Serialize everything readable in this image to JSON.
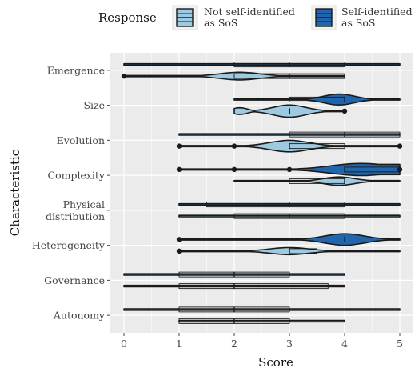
{
  "colors": {
    "panel_bg": "#ebebeb",
    "grid": "#ffffff",
    "not_sos_fill": "#9ecae1",
    "sos_fill": "#2166ac",
    "outline": "#1a1a1a"
  },
  "chart_data": {
    "type": "violin",
    "xlabel": "Score",
    "ylabel": "Characteristic",
    "xlim": [
      0,
      5
    ],
    "x_ticks": [
      "0",
      "1",
      "2",
      "3",
      "4",
      "5"
    ],
    "legend": {
      "title": "Response",
      "position": "top",
      "entries": [
        {
          "key": "not_sos",
          "label_lines": [
            "Not self-identified",
            "as SoS"
          ]
        },
        {
          "key": "sos",
          "label_lines": [
            "Self-identified",
            "as SoS"
          ]
        }
      ]
    },
    "categories": [
      {
        "label_lines": [
          "Emergence"
        ],
        "sos": {
          "min": 0,
          "q1": 2,
          "median": 3,
          "q3": 4,
          "max": 5,
          "shape": "flat"
        },
        "not_sos": {
          "min": 0,
          "q1": 2,
          "median": 3,
          "q3": 4,
          "max": 4,
          "shape": "peak",
          "peak": 2.1,
          "width": 0.6,
          "outliers": [
            0
          ]
        }
      },
      {
        "label_lines": [
          "Size"
        ],
        "sos": {
          "min": 2,
          "q1": 3,
          "median": 4,
          "q3": 4,
          "max": 5,
          "shape": "peak",
          "peak": 3.9,
          "width": 0.85
        },
        "not_sos": {
          "min": 2,
          "q1": 3,
          "median": 3,
          "q3": 3,
          "max": 4,
          "shape": "bimodal",
          "peaks": [
            2.1,
            3.0
          ],
          "width": 0.95,
          "outliers": [
            4
          ]
        }
      },
      {
        "label_lines": [
          "Evolution"
        ],
        "sos": {
          "min": 1,
          "q1": 3,
          "median": 4,
          "q3": 5,
          "max": 5,
          "shape": "flat"
        },
        "not_sos": {
          "min": 1,
          "q1": 3,
          "median": 3,
          "q3": 4,
          "max": 5,
          "shape": "peak",
          "peak": 3.0,
          "width": 0.9,
          "outliers": [
            1,
            2,
            5
          ]
        }
      },
      {
        "label_lines": [
          "Complexity"
        ],
        "sos": {
          "min": 1,
          "q1": 4,
          "median": 4,
          "q3": 5,
          "max": 5,
          "shape": "rise",
          "peak": 4.3,
          "width": 0.95,
          "outliers": [
            1,
            2,
            3,
            5
          ]
        },
        "not_sos": {
          "min": 2,
          "q1": 3,
          "median": 4,
          "q3": 4,
          "max": 5,
          "shape": "peak",
          "peak": 3.9,
          "width": 0.65
        }
      },
      {
        "label_lines": [
          "Physical",
          "distribution"
        ],
        "sos": {
          "min": 1,
          "q1": 1.5,
          "median": 3,
          "q3": 4,
          "max": 5,
          "shape": "flat"
        },
        "not_sos": {
          "min": 1,
          "q1": 2,
          "median": 3,
          "q3": 4,
          "max": 5,
          "shape": "flat"
        }
      },
      {
        "label_lines": [
          "Heterogeneity"
        ],
        "sos": {
          "min": 1,
          "q1": 4,
          "median": 4,
          "q3": 4,
          "max": 5,
          "shape": "peak",
          "peak": 4.0,
          "width": 0.9,
          "outliers": [
            1
          ]
        },
        "not_sos": {
          "min": 1,
          "q1": 3,
          "median": 3,
          "q3": 3.5,
          "max": 5,
          "shape": "peak",
          "peak": 3.0,
          "width": 0.55,
          "outliers": [
            1
          ]
        }
      },
      {
        "label_lines": [
          "Governance"
        ],
        "sos": {
          "min": 0,
          "q1": 1,
          "median": 2,
          "q3": 3,
          "max": 4,
          "shape": "flat"
        },
        "not_sos": {
          "min": 0,
          "q1": 1,
          "median": 2,
          "q3": 3.7,
          "max": 4,
          "shape": "flat"
        }
      },
      {
        "label_lines": [
          "Autonomy"
        ],
        "sos": {
          "min": 0,
          "q1": 1,
          "median": 2,
          "q3": 3,
          "max": 5,
          "shape": "flat"
        },
        "not_sos": {
          "min": 1,
          "q1": 1,
          "median": 2,
          "q3": 3,
          "max": 4,
          "shape": "flat"
        }
      }
    ]
  }
}
